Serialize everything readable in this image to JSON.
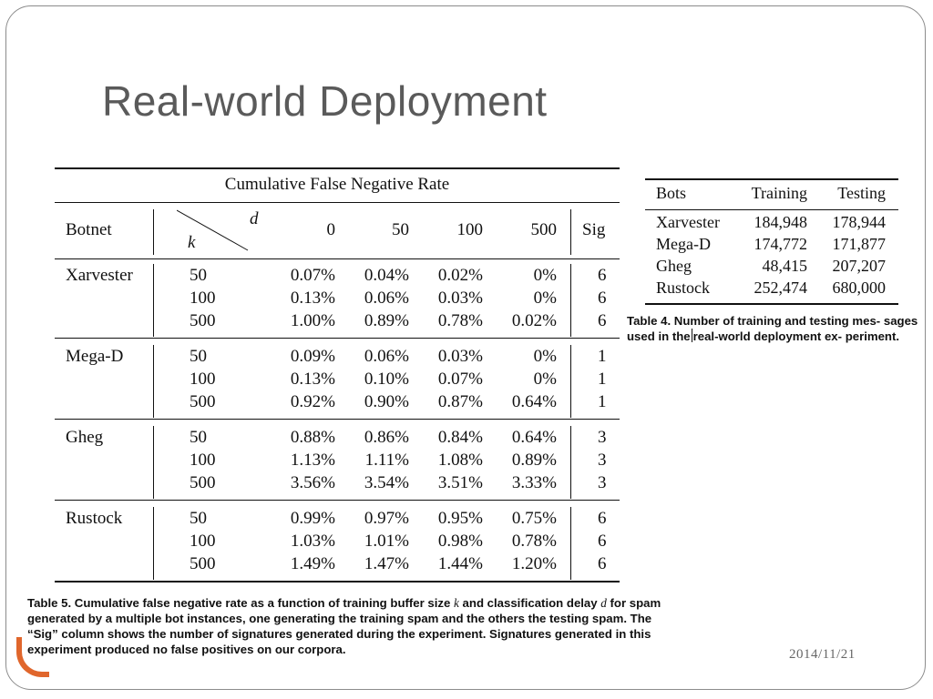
{
  "slide": {
    "title": "Real-world Deployment",
    "date": "2014/11/21",
    "accent_color": "#e0662c",
    "title_color": "#5a5a5a"
  },
  "table5": {
    "title": "Cumulative False Negative Rate",
    "header": {
      "botnet": "Botnet",
      "d": "d",
      "k": "k",
      "cols": [
        "0",
        "50",
        "100",
        "500"
      ],
      "sig": "Sig"
    },
    "groups": [
      {
        "botnet": "Xarvester",
        "rows": [
          {
            "k": "50",
            "v": [
              "0.07%",
              "0.04%",
              "0.02%",
              "0%"
            ],
            "sig": "6"
          },
          {
            "k": "100",
            "v": [
              "0.13%",
              "0.06%",
              "0.03%",
              "0%"
            ],
            "sig": "6"
          },
          {
            "k": "500",
            "v": [
              "1.00%",
              "0.89%",
              "0.78%",
              "0.02%"
            ],
            "sig": "6"
          }
        ]
      },
      {
        "botnet": "Mega-D",
        "rows": [
          {
            "k": "50",
            "v": [
              "0.09%",
              "0.06%",
              "0.03%",
              "0%"
            ],
            "sig": "1"
          },
          {
            "k": "100",
            "v": [
              "0.13%",
              "0.10%",
              "0.07%",
              "0%"
            ],
            "sig": "1"
          },
          {
            "k": "500",
            "v": [
              "0.92%",
              "0.90%",
              "0.87%",
              "0.64%"
            ],
            "sig": "1"
          }
        ]
      },
      {
        "botnet": "Gheg",
        "rows": [
          {
            "k": "50",
            "v": [
              "0.88%",
              "0.86%",
              "0.84%",
              "0.64%"
            ],
            "sig": "3"
          },
          {
            "k": "100",
            "v": [
              "1.13%",
              "1.11%",
              "1.08%",
              "0.89%"
            ],
            "sig": "3"
          },
          {
            "k": "500",
            "v": [
              "3.56%",
              "3.54%",
              "3.51%",
              "3.33%"
            ],
            "sig": "3"
          }
        ]
      },
      {
        "botnet": "Rustock",
        "rows": [
          {
            "k": "50",
            "v": [
              "0.99%",
              "0.97%",
              "0.95%",
              "0.75%"
            ],
            "sig": "6"
          },
          {
            "k": "100",
            "v": [
              "1.03%",
              "1.01%",
              "0.98%",
              "0.78%"
            ],
            "sig": "6"
          },
          {
            "k": "500",
            "v": [
              "1.49%",
              "1.47%",
              "1.44%",
              "1.20%"
            ],
            "sig": "6"
          }
        ]
      }
    ],
    "caption": {
      "p1": "Table 5.  Cumulative false negative rate as a function of training buffer size ",
      "k": "k",
      "p2": " and classification delay ",
      "d": "d",
      "p3": " for spam generated by a multiple bot instances, one generating the training spam and the others the testing spam. The “Sig” column shows the number of signatures generated during the experiment. Signatures generated in this experiment produced no false positives on our corpora."
    }
  },
  "table4": {
    "headers": [
      "Bots",
      "Training",
      "Testing"
    ],
    "rows": [
      [
        "Xarvester",
        "184,948",
        "178,944"
      ],
      [
        "Mega-D",
        "174,772",
        "171,877"
      ],
      [
        "Gheg",
        "48,415",
        "207,207"
      ],
      [
        "Rustock",
        "252,474",
        "680,000"
      ]
    ],
    "caption": {
      "p1": "Table 4.  Number of training and testing mes- sages used in the",
      "p2": "real-world deployment ex- periment."
    }
  }
}
